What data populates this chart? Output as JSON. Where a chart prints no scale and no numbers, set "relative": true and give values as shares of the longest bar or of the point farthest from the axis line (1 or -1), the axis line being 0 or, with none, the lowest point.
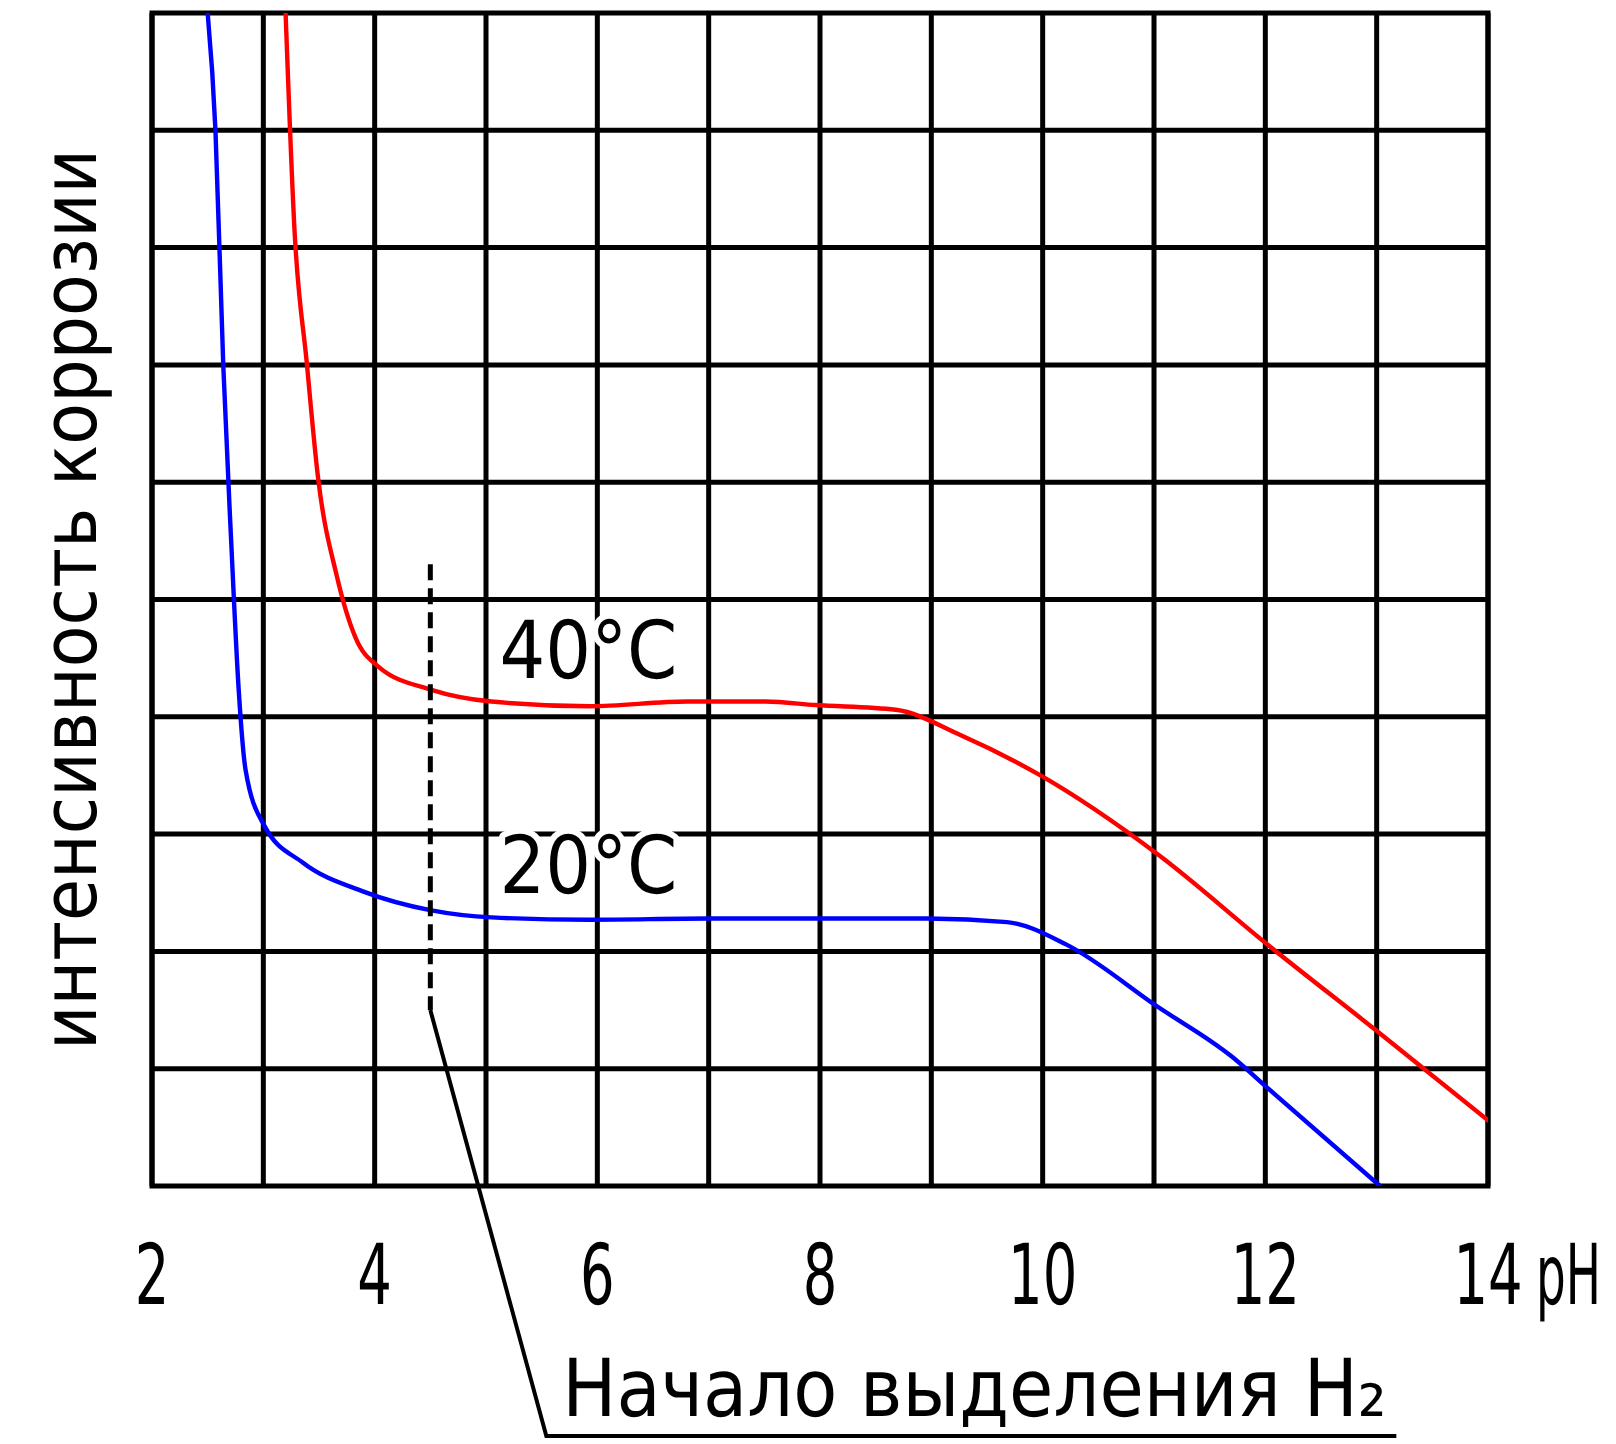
{
  "chart_data": {
    "type": "line",
    "relative": true,
    "xlabel": "pH",
    "ylabel": "интенсивность коррозии",
    "xlim": [
      2,
      14
    ],
    "xticks": [
      2,
      {
        "value": 3,
        "label": null
      },
      4,
      {
        "value": 5,
        "label": null
      },
      6,
      {
        "value": 7,
        "label": null
      },
      8,
      {
        "value": 9,
        "label": null
      },
      10,
      {
        "value": 11,
        "label": null
      },
      12,
      {
        "value": 13,
        "label": null
      },
      14
    ],
    "grid": true,
    "marker": "none",
    "line_style": "solid",
    "series": [
      {
        "color": "#ff0000",
        "x": [
          3.2,
          3.28,
          3.39,
          3.49,
          3.66,
          3.83,
          4.03,
          4.51,
          5.05,
          5.93,
          6.81,
          7.51,
          7.96,
          8.68,
          9.27,
          9.98,
          11.03,
          12.03,
          13.03,
          14.0
        ],
        "values": [
          1.0,
          0.815,
          0.702,
          0.605,
          0.52,
          0.467,
          0.443,
          0.423,
          0.413,
          0.409,
          0.413,
          0.413,
          0.41,
          0.406,
          0.384,
          0.35,
          0.283,
          0.205,
          0.13,
          0.056
        ]
      },
      {
        "color": "#0000ff",
        "x": [
          2.5,
          2.57,
          2.64,
          2.71,
          2.78,
          2.84,
          3.01,
          3.35,
          3.9,
          4.51,
          5.05,
          5.93,
          7.0,
          7.96,
          8.97,
          9.68,
          10.21,
          11.03,
          11.69,
          12.04,
          13.03
        ],
        "values": [
          1.0,
          0.9,
          0.7,
          0.552,
          0.421,
          0.355,
          0.307,
          0.276,
          0.251,
          0.235,
          0.229,
          0.227,
          0.228,
          0.228,
          0.228,
          0.225,
          0.206,
          0.153,
          0.111,
          0.082,
          0.0
        ]
      }
    ],
    "annotations": [
      {
        "text": "40°C",
        "x": 5.05,
        "y": 0.413
      },
      {
        "text": "20°C",
        "x": 5.05,
        "y": 0.229
      }
    ],
    "ref_lines": [
      {
        "axis": "x",
        "value": 4.5,
        "label": "Начало выделения H₂",
        "line_style": "dashed",
        "color": "#000000"
      }
    ]
  }
}
